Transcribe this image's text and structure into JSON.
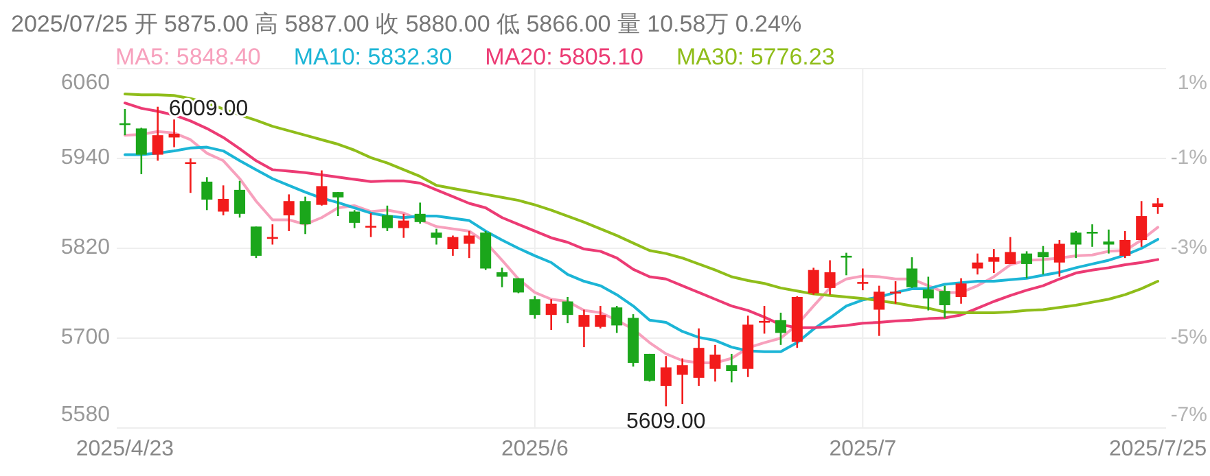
{
  "chart_data": {
    "type": "candlestick",
    "title": "2025/07/25 开 5875.00 高 5887.00 收 5880.00 低 5866.00 量 10.58万 0.24%",
    "categories": [
      "2025/4/23",
      null,
      null,
      null,
      null,
      null,
      null,
      null,
      null,
      null,
      null,
      null,
      null,
      null,
      null,
      null,
      null,
      null,
      null,
      null,
      null,
      null,
      null,
      null,
      null,
      "2025/6",
      null,
      null,
      null,
      null,
      null,
      null,
      null,
      null,
      null,
      null,
      null,
      null,
      null,
      null,
      null,
      null,
      null,
      null,
      null,
      "2025/7",
      null,
      null,
      null,
      null,
      null,
      null,
      null,
      null,
      null,
      null,
      null,
      null,
      null,
      null,
      null,
      null,
      null,
      "2025/7/25"
    ],
    "ohlc": [
      [
        5987,
        6006,
        5971,
        5985
      ],
      [
        5980,
        5981,
        5919,
        5945
      ],
      [
        5945,
        6009,
        5937,
        5971
      ],
      [
        5968,
        5992,
        5955,
        5973
      ],
      [
        5934,
        5940,
        5894,
        5935
      ],
      [
        5909,
        5915,
        5871,
        5885
      ],
      [
        5869,
        5904,
        5864,
        5886
      ],
      [
        5898,
        5910,
        5861,
        5866
      ],
      [
        5849,
        5849,
        5807,
        5810
      ],
      [
        5833,
        5852,
        5825,
        5835
      ],
      [
        5864,
        5892,
        5843,
        5883
      ],
      [
        5883,
        5889,
        5839,
        5852
      ],
      [
        5878,
        5924,
        5877,
        5903
      ],
      [
        5895,
        5895,
        5863,
        5888
      ],
      [
        5869,
        5871,
        5847,
        5854
      ],
      [
        5848,
        5867,
        5835,
        5850
      ],
      [
        5864,
        5877,
        5843,
        5847
      ],
      [
        5847,
        5866,
        5834,
        5857
      ],
      [
        5866,
        5881,
        5853,
        5855
      ],
      [
        5841,
        5846,
        5825,
        5834
      ],
      [
        5819,
        5837,
        5810,
        5835
      ],
      [
        5826,
        5843,
        5807,
        5837
      ],
      [
        5841,
        5843,
        5791,
        5793
      ],
      [
        5788,
        5794,
        5768,
        5782
      ],
      [
        5780,
        5780,
        5760,
        5761
      ],
      [
        5752,
        5756,
        5726,
        5731
      ],
      [
        5731,
        5752,
        5711,
        5746
      ],
      [
        5749,
        5755,
        5720,
        5731
      ],
      [
        5715,
        5738,
        5688,
        5731
      ],
      [
        5715,
        5743,
        5713,
        5731
      ],
      [
        5741,
        5743,
        5707,
        5717
      ],
      [
        5727,
        5732,
        5662,
        5667
      ],
      [
        5679,
        5679,
        5642,
        5643
      ],
      [
        5636,
        5676,
        5609,
        5661
      ],
      [
        5651,
        5673,
        5612,
        5664
      ],
      [
        5647,
        5713,
        5636,
        5687
      ],
      [
        5659,
        5691,
        5642,
        5678
      ],
      [
        5664,
        5679,
        5641,
        5656
      ],
      [
        5659,
        5730,
        5648,
        5718
      ],
      [
        5722,
        5743,
        5706,
        5723
      ],
      [
        5724,
        5734,
        5691,
        5707
      ],
      [
        5695,
        5756,
        5687,
        5755
      ],
      [
        5760,
        5794,
        5758,
        5791
      ],
      [
        5767,
        5804,
        5758,
        5788
      ],
      [
        5810,
        5814,
        5784,
        5808
      ],
      [
        5774,
        5793,
        5764,
        5775
      ],
      [
        5738,
        5770,
        5703,
        5762
      ],
      [
        5761,
        5776,
        5746,
        5762
      ],
      [
        5793,
        5808,
        5767,
        5768
      ],
      [
        5765,
        5782,
        5737,
        5753
      ],
      [
        5763,
        5770,
        5727,
        5744
      ],
      [
        5755,
        5780,
        5746,
        5773
      ],
      [
        5793,
        5813,
        5785,
        5801
      ],
      [
        5802,
        5819,
        5787,
        5808
      ],
      [
        5799,
        5835,
        5799,
        5815
      ],
      [
        5813,
        5816,
        5780,
        5799
      ],
      [
        5815,
        5823,
        5785,
        5808
      ],
      [
        5801,
        5831,
        5782,
        5826
      ],
      [
        5841,
        5843,
        5807,
        5825
      ],
      [
        5842,
        5852,
        5822,
        5841
      ],
      [
        5829,
        5845,
        5813,
        5825
      ],
      [
        5810,
        5843,
        5807,
        5831
      ],
      [
        5831,
        5883,
        5822,
        5863
      ],
      [
        5875,
        5887,
        5866,
        5880
      ]
    ],
    "colors": [
      "#1ba61b",
      "#1ba61b",
      "#f21b1b",
      "#f21b1b",
      "#f21b1b",
      "#1ba61b",
      "#f21b1b",
      "#1ba61b",
      "#1ba61b",
      "#f21b1b",
      "#f21b1b",
      "#1ba61b",
      "#f21b1b",
      "#1ba61b",
      "#1ba61b",
      "#f21b1b",
      "#1ba61b",
      "#f21b1b",
      "#1ba61b",
      "#1ba61b",
      "#f21b1b",
      "#f21b1b",
      "#1ba61b",
      "#1ba61b",
      "#1ba61b",
      "#1ba61b",
      "#f21b1b",
      "#1ba61b",
      "#f21b1b",
      "#f21b1b",
      "#1ba61b",
      "#1ba61b",
      "#1ba61b",
      "#f21b1b",
      "#f21b1b",
      "#f21b1b",
      "#f21b1b",
      "#1ba61b",
      "#f21b1b",
      "#f21b1b",
      "#1ba61b",
      "#f21b1b",
      "#f21b1b",
      "#f21b1b",
      "#1ba61b",
      "#f21b1b",
      "#f21b1b",
      "#f21b1b",
      "#1ba61b",
      "#1ba61b",
      "#1ba61b",
      "#f21b1b",
      "#f21b1b",
      "#f21b1b",
      "#f21b1b",
      "#1ba61b",
      "#1ba61b",
      "#f21b1b",
      "#1ba61b",
      "#1ba61b",
      "#1ba61b",
      "#f21b1b",
      "#f21b1b",
      "#f21b1b"
    ],
    "series": [
      {
        "type": "line",
        "name": "MA5: 5848.40",
        "color": "#f7a1bd",
        "values": [
          5971,
          5972,
          5976,
          5974,
          5965,
          5947,
          5937,
          5913,
          5883,
          5858,
          5858,
          5852,
          5861,
          5874,
          5877,
          5869,
          5871,
          5867,
          5858,
          5849,
          5846,
          5843,
          5828,
          5804,
          5779,
          5761,
          5752,
          5749,
          5737,
          5734,
          5724,
          5712,
          5694,
          5679,
          5670,
          5667,
          5667,
          5673,
          5687,
          5694,
          5700,
          5718,
          5743,
          5767,
          5779,
          5783,
          5782,
          5779,
          5779,
          5770,
          5761,
          5761,
          5770,
          5782,
          5798,
          5804,
          5805,
          5807,
          5810,
          5811,
          5816,
          5817,
          5831,
          5848
        ]
      },
      {
        "type": "line",
        "name": "MA10: 5832.30",
        "color": "#1cb5d6",
        "values": [
          5945,
          5945,
          5947,
          5950,
          5954,
          5955,
          5950,
          5937,
          5925,
          5913,
          5904,
          5895,
          5887,
          5881,
          5874,
          5867,
          5863,
          5861,
          5863,
          5863,
          5860,
          5857,
          5843,
          5831,
          5820,
          5810,
          5801,
          5785,
          5776,
          5770,
          5758,
          5743,
          5724,
          5721,
          5709,
          5701,
          5697,
          5688,
          5683,
          5682,
          5682,
          5694,
          5712,
          5727,
          5743,
          5751,
          5755,
          5761,
          5766,
          5766,
          5772,
          5774,
          5776,
          5776,
          5778,
          5780,
          5784,
          5788,
          5794,
          5799,
          5804,
          5811,
          5820,
          5832
        ]
      },
      {
        "type": "line",
        "name": "MA20: 5805.10",
        "color": "#ec3b74",
        "values": [
          6014,
          6007,
          6003,
          5998,
          5990,
          5980,
          5968,
          5953,
          5937,
          5925,
          5923,
          5921,
          5918,
          5915,
          5912,
          5909,
          5910,
          5910,
          5907,
          5898,
          5889,
          5880,
          5874,
          5861,
          5852,
          5843,
          5834,
          5828,
          5819,
          5816,
          5807,
          5792,
          5782,
          5779,
          5770,
          5761,
          5752,
          5743,
          5737,
          5728,
          5718,
          5714,
          5714,
          5715,
          5717,
          5720,
          5721,
          5723,
          5724,
          5726,
          5727,
          5731,
          5740,
          5749,
          5757,
          5764,
          5770,
          5779,
          5787,
          5791,
          5794,
          5798,
          5801,
          5805
        ]
      },
      {
        "type": "line",
        "name": "MA30: 5776.23",
        "color": "#8fbd1a",
        "values": [
          6026,
          6025,
          6025,
          6024,
          6020,
          6014,
          6006,
          5998,
          5991,
          5983,
          5977,
          5971,
          5965,
          5959,
          5951,
          5941,
          5934,
          5925,
          5916,
          5904,
          5900,
          5896,
          5892,
          5888,
          5884,
          5878,
          5871,
          5863,
          5855,
          5846,
          5837,
          5827,
          5817,
          5813,
          5807,
          5799,
          5791,
          5782,
          5777,
          5773,
          5767,
          5763,
          5759,
          5757,
          5755,
          5753,
          5750,
          5747,
          5743,
          5740,
          5735,
          5734,
          5734,
          5734,
          5735,
          5737,
          5738,
          5741,
          5744,
          5748,
          5752,
          5758,
          5766,
          5776
        ]
      }
    ],
    "ylim": [
      5580,
      6060
    ],
    "yticks": [
      5580,
      5700,
      5820,
      5940,
      6060
    ],
    "y2lim": [
      -7,
      1
    ],
    "y2ticks": [
      {
        "value": -7,
        "label": "-7%"
      },
      {
        "value": -5,
        "label": "-5%"
      },
      {
        "value": -3,
        "label": "-3%"
      },
      {
        "value": -1,
        "label": "-1%"
      },
      {
        "value": 1,
        "label": "1%"
      }
    ],
    "grid": true,
    "legend": "top",
    "annotations": [
      {
        "text": "6009.00",
        "y": 6009
      },
      {
        "text": "5609.00",
        "y": 5609
      }
    ]
  }
}
